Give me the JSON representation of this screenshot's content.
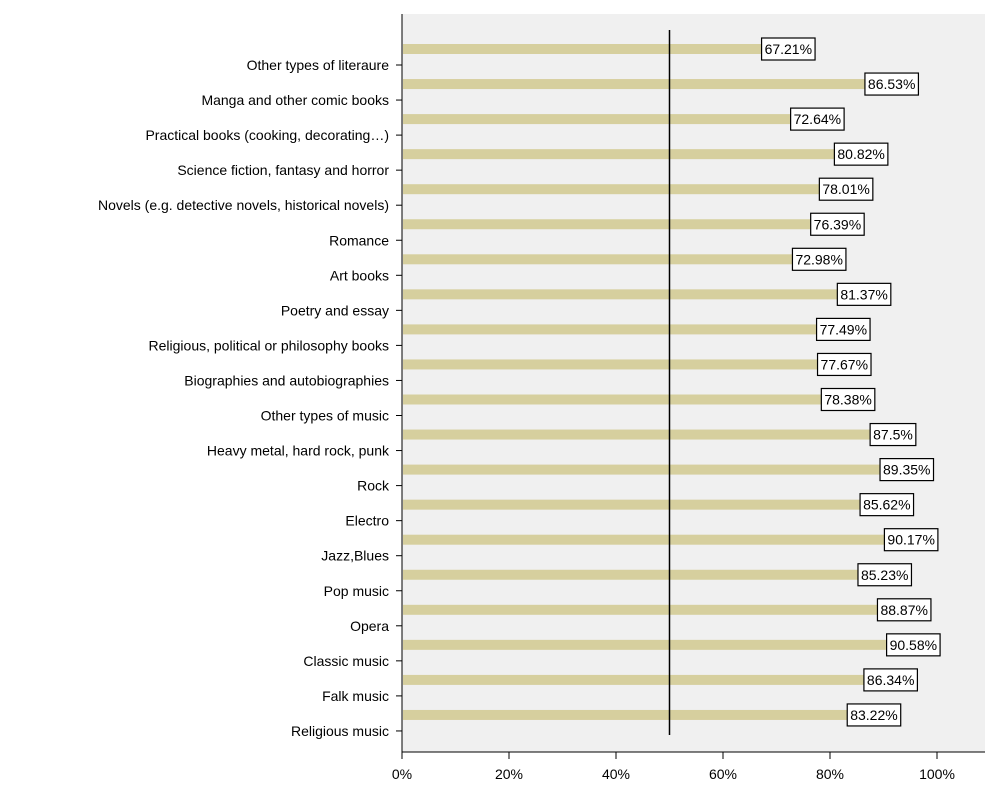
{
  "chart_data": {
    "type": "bar",
    "orientation": "horizontal",
    "categories": [
      "Other types of literaure",
      "Manga and other comic books",
      "Practical books (cooking, decorating…)",
      "Science fiction, fantasy and horror",
      "Novels (e.g. detective novels, historical novels)",
      "Romance",
      "Art books",
      "Poetry and essay",
      "Religious, political or philosophy books",
      "Biographies and autobiographies",
      "Other types of music",
      "Heavy metal, hard rock, punk",
      "Rock",
      "Electro",
      "Jazz,Blues",
      "Pop music",
      "Opera",
      "Classic music",
      "Falk music",
      "Religious music"
    ],
    "values": [
      67.21,
      86.53,
      72.64,
      80.82,
      78.01,
      76.39,
      72.98,
      81.37,
      77.49,
      77.67,
      78.38,
      87.5,
      89.35,
      85.62,
      90.17,
      85.23,
      88.87,
      90.58,
      86.34,
      83.22
    ],
    "data_labels": [
      "67.21%",
      "86.53%",
      "72.64%",
      "80.82%",
      "78.01%",
      "76.39%",
      "72.98%",
      "81.37%",
      "77.49%",
      "77.67%",
      "78.38%",
      "87.5%",
      "89.35%",
      "85.62%",
      "90.17%",
      "85.23%",
      "88.87%",
      "90.58%",
      "86.34%",
      "83.22%"
    ],
    "x_ticks": [
      0,
      20,
      40,
      60,
      80,
      100
    ],
    "x_tick_labels": [
      "0%",
      "20%",
      "40%",
      "60%",
      "80%",
      "100%"
    ],
    "xlim": [
      0,
      110
    ],
    "reference_line": 50,
    "title": "",
    "xlabel": "",
    "ylabel": "",
    "grid": false,
    "colors": {
      "bar": "#d6cf9e",
      "plot_background": "#f0f0f0",
      "axis": "#000000",
      "label_box_fill": "#ffffff",
      "label_box_border": "#000000"
    }
  }
}
